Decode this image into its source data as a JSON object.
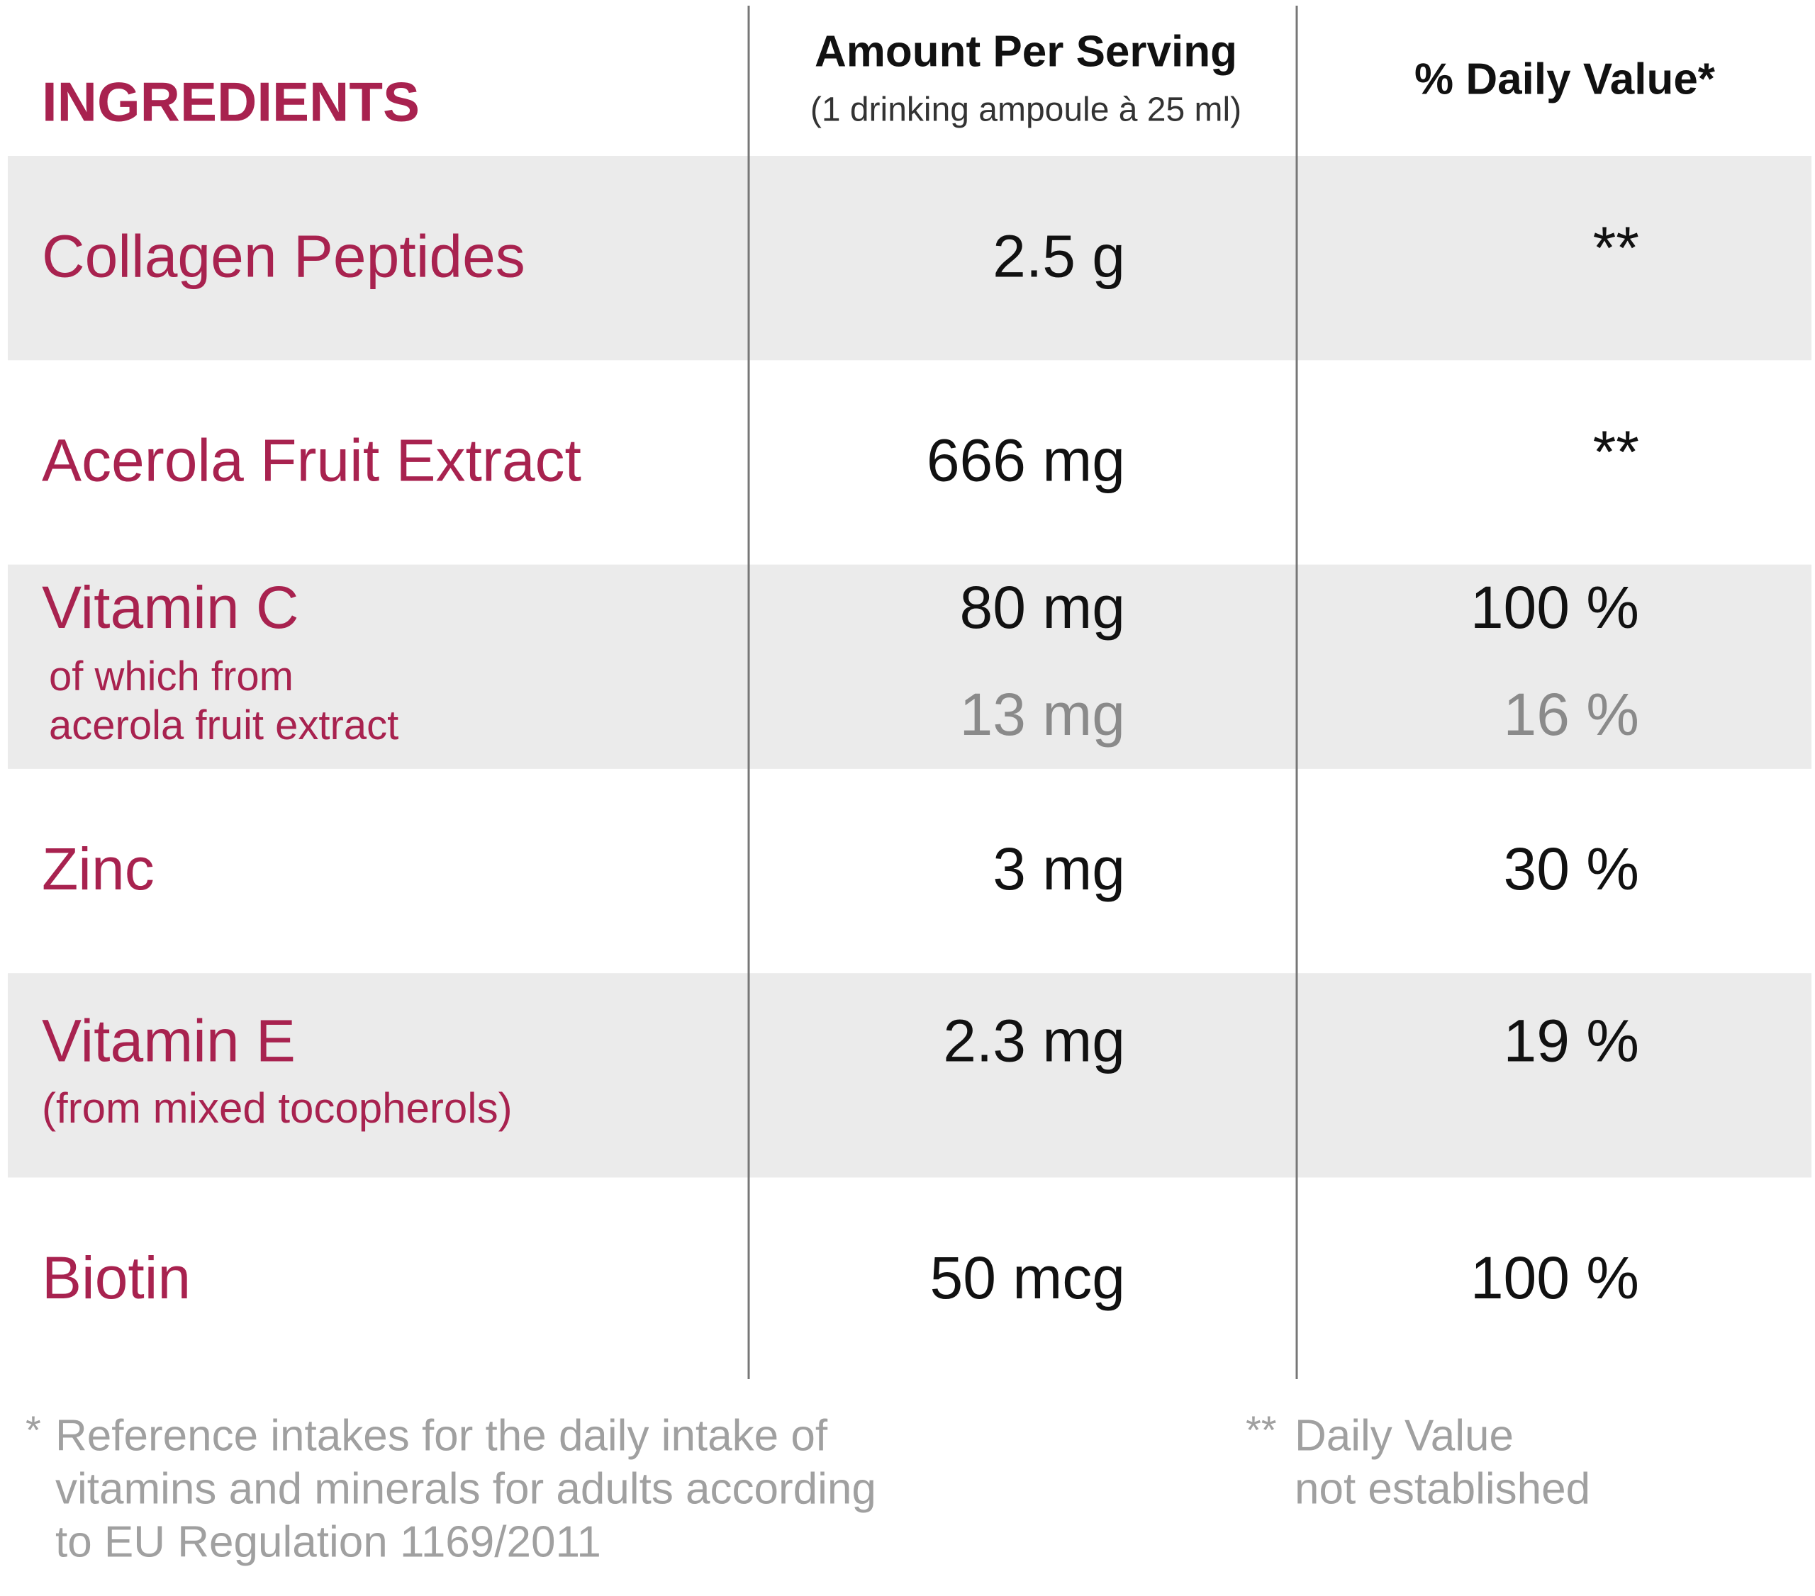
{
  "header": {
    "title": "INGREDIENTS",
    "amount_header": "Amount Per Serving",
    "amount_subheader": "(1 drinking ampoule à 25 ml)",
    "dv_header": "% Daily Value*"
  },
  "rows": [
    {
      "name": "Collagen Peptides",
      "amount": "2.5 g",
      "dv": "**"
    },
    {
      "name": "Acerola Fruit Extract",
      "amount": "666 mg",
      "dv": "**"
    },
    {
      "name": "Vitamin C",
      "sub": [
        "of which from",
        "acerola fruit extract"
      ],
      "amount": "80 mg",
      "dv": "100 %",
      "sub_amount": "13 mg",
      "sub_dv": "16 %"
    },
    {
      "name": "Zinc",
      "amount": "3 mg",
      "dv": "30 %"
    },
    {
      "name": "Vitamin E",
      "sub": [
        "(from mixed tocopherols)"
      ],
      "amount": "2.3 mg",
      "dv": "19 %"
    },
    {
      "name": "Biotin",
      "amount": "50 mcg",
      "dv": "100 %"
    }
  ],
  "footnotes": [
    {
      "marker": "*",
      "lines": [
        "Reference intakes for the daily intake of",
        "vitamins and minerals for adults according",
        "to EU Regulation 1169/2011"
      ]
    },
    {
      "marker": "**",
      "lines": [
        "Daily Value",
        "not established"
      ]
    }
  ]
}
